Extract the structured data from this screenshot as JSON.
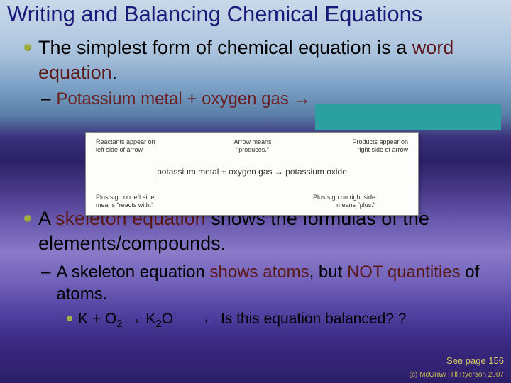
{
  "title": "Writing and Balancing Chemical Equations",
  "p1a": "The simplest form of chemical equation is a",
  "p1b": "word equation",
  "p1c": ".",
  "p2a": "Potassium metal + oxygen gas ",
  "p2arrow": "→",
  "diagram": {
    "reactants_label": "Reactants appear on\nleft side of arrow",
    "arrow_label": "Arrow means\n\"produces.\"",
    "products_label": "Products appear on\nright side of arrow",
    "plus_left": "Plus sign on left side\nmeans \"reacts with.\"",
    "plus_right": "Plus sign on right side\nmeans \"plus.\"",
    "equation": "potassium metal + oxygen gas → potassium oxide"
  },
  "p3a": "A ",
  "p3b": "skeleton equation",
  "p3c": " shows the formulas of the elements/compounds.",
  "p4a": "A skeleton equation ",
  "p4b": "shows atoms",
  "p4c": ", but ",
  "p4d": "NOT quantities",
  "p4e": " of atoms.",
  "p5_eq_k": "K + O",
  "p5_eq_o2sub": "2",
  "p5_eq_arrow": " → K",
  "p5_eq_k2sub": "2",
  "p5_eq_o": "O",
  "p5_q_arrow": "←",
  "p5_q": " Is this equation balanced? ?",
  "footer1": "See page 156",
  "footer2": "(c) McGraw Hill Ryerson 2007",
  "colors": {
    "title": "#1a1a7a",
    "bullet": "#9fb040",
    "emphasis": "#5a1818",
    "teal": "#2aa0a0"
  }
}
